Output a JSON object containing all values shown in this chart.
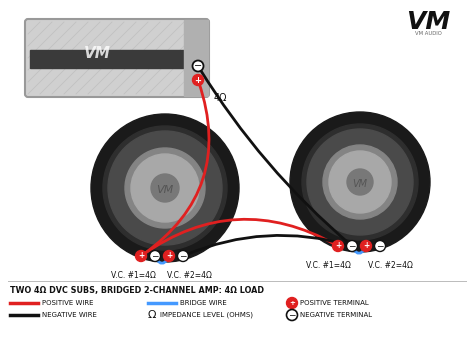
{
  "bg_color": "#ffffff",
  "title_text": "TWO 4Ω DVC SUBS, BRIDGED 2-CHANNEL AMP: 4Ω LOAD",
  "amp_label": "4Ω",
  "sub1_vc1": "V.C. #1=4Ω",
  "sub1_vc2": "V.C. #2=4Ω",
  "sub2_vc1": "V.C. #1=4Ω",
  "sub2_vc2": "V.C. #2=4Ω",
  "vm_logo": "VM",
  "vm_sub": "VM AUDIO",
  "red_color": "#e02020",
  "black_color": "#111111",
  "blue_color": "#4499ff",
  "legend_pos_wire": "POSITIVE WIRE",
  "legend_neg_wire": "NEGATIVE WIRE",
  "legend_bridge": "BRIDGE WIRE",
  "legend_omega": "Ω",
  "legend_impedance": "IMPEDANCE LEVEL (OHMS)",
  "legend_pos_term": "POSITIVE TERMINAL",
  "legend_neg_term": "NEGATIVE TERMINAL"
}
